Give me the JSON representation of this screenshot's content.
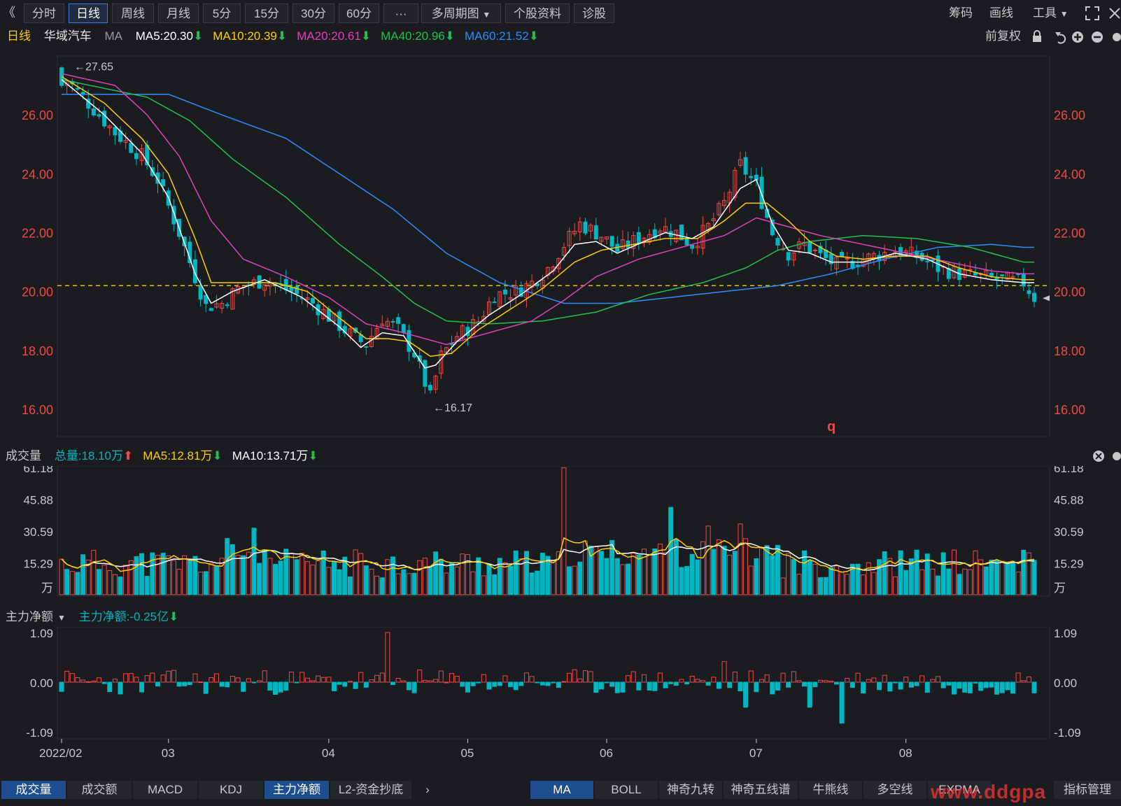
{
  "toolbar": {
    "back_glyph": "《",
    "periods": [
      "分时",
      "日线",
      "周线",
      "月线",
      "5分",
      "15分",
      "30分",
      "60分"
    ],
    "active_period": "日线",
    "more": "···",
    "multi_period": "多周期图",
    "stock_info": "个股资料",
    "diagnose": "诊股",
    "right": [
      "筹码",
      "画线",
      "工具"
    ],
    "tool_arrow": "▼"
  },
  "info": {
    "period": "日线",
    "stock": "华域汽车",
    "ma_label": "MA",
    "ma": [
      {
        "text": "MA5:20.30",
        "color": "#ffffff"
      },
      {
        "text": "MA10:20.39",
        "color": "#ffcc00"
      },
      {
        "text": "MA20:20.61",
        "color": "#e040c0"
      },
      {
        "text": "MA40:20.96",
        "color": "#22c050"
      },
      {
        "text": "MA60:21.52",
        "color": "#2f8cff"
      }
    ],
    "adjust": "前复权"
  },
  "colors": {
    "up": "#f04848",
    "down": "#00b7c3",
    "ma5": "#ffffff",
    "ma10": "#ffcc00",
    "ma20": "#e040c0",
    "ma40": "#22c050",
    "ma60": "#2f8cff",
    "axis_red": "#f04848",
    "grid": "#2c2d33"
  },
  "chart_data": [
    {
      "type": "candlestick",
      "title": "华域汽车",
      "y_ticks": [
        "26.00",
        "24.00",
        "22.00",
        "20.00",
        "18.00",
        "16.00"
      ],
      "ylim": [
        15.5,
        28.0
      ],
      "annotations": [
        {
          "text": "27.65",
          "value": 27.65
        },
        {
          "text": "16.17",
          "value": 16.17
        },
        {
          "text": "q"
        }
      ],
      "reference_line": 20.2,
      "x_ticks": [
        "2022/02",
        "03",
        "04",
        "05",
        "06",
        "07",
        "08"
      ],
      "close_path": [
        [
          0,
          27.4
        ],
        [
          5,
          26.4
        ],
        [
          10,
          25.4
        ],
        [
          15,
          24.6
        ],
        [
          18,
          23.8
        ],
        [
          22,
          22.0
        ],
        [
          25,
          20.5
        ],
        [
          27,
          19.5
        ],
        [
          30,
          19.6
        ],
        [
          33,
          20.1
        ],
        [
          38,
          20.4
        ],
        [
          43,
          20.0
        ],
        [
          47,
          19.6
        ],
        [
          51,
          19.0
        ],
        [
          55,
          18.4
        ],
        [
          57,
          18.2
        ],
        [
          60,
          19.1
        ],
        [
          63,
          18.7
        ],
        [
          66,
          17.9
        ],
        [
          69,
          16.4
        ],
        [
          71,
          17.8
        ],
        [
          74,
          18.5
        ],
        [
          78,
          19.0
        ],
        [
          81,
          19.9
        ],
        [
          85,
          20.0
        ],
        [
          88,
          20.3
        ],
        [
          91,
          20.8
        ],
        [
          94,
          21.6
        ],
        [
          97,
          22.3
        ],
        [
          101,
          21.9
        ],
        [
          104,
          21.4
        ],
        [
          108,
          21.8
        ],
        [
          112,
          22.2
        ],
        [
          115,
          22.0
        ],
        [
          118,
          21.6
        ],
        [
          121,
          22.2
        ],
        [
          124,
          23.0
        ],
        [
          127,
          24.3
        ],
        [
          130,
          23.6
        ],
        [
          133,
          22.0
        ],
        [
          136,
          21.3
        ],
        [
          139,
          21.6
        ],
        [
          142,
          21.2
        ],
        [
          145,
          20.9
        ],
        [
          148,
          21.0
        ],
        [
          152,
          21.2
        ],
        [
          156,
          21.4
        ],
        [
          160,
          21.2
        ],
        [
          164,
          20.8
        ],
        [
          168,
          20.6
        ],
        [
          172,
          20.5
        ],
        [
          176,
          20.4
        ],
        [
          180,
          20.3
        ],
        [
          182,
          19.8
        ]
      ],
      "ma_paths": {
        "ma5": [
          [
            0,
            27.2
          ],
          [
            8,
            26.0
          ],
          [
            15,
            24.7
          ],
          [
            20,
            23.2
          ],
          [
            25,
            20.6
          ],
          [
            28,
            19.6
          ],
          [
            32,
            20.0
          ],
          [
            38,
            20.4
          ],
          [
            45,
            19.8
          ],
          [
            52,
            18.8
          ],
          [
            56,
            18.1
          ],
          [
            60,
            18.6
          ],
          [
            64,
            18.5
          ],
          [
            68,
            17.4
          ],
          [
            70,
            17.5
          ],
          [
            74,
            18.3
          ],
          [
            80,
            19.2
          ],
          [
            86,
            19.9
          ],
          [
            92,
            20.7
          ],
          [
            96,
            21.6
          ],
          [
            100,
            21.7
          ],
          [
            104,
            21.3
          ],
          [
            109,
            21.7
          ],
          [
            113,
            22.0
          ],
          [
            118,
            21.8
          ],
          [
            122,
            22.2
          ],
          [
            127,
            23.5
          ],
          [
            130,
            23.8
          ],
          [
            133,
            22.3
          ],
          [
            136,
            21.4
          ],
          [
            140,
            21.3
          ],
          [
            144,
            21.0
          ],
          [
            150,
            21.0
          ],
          [
            156,
            21.3
          ],
          [
            162,
            21.1
          ],
          [
            168,
            20.6
          ],
          [
            174,
            20.4
          ],
          [
            180,
            20.3
          ]
        ],
        "ma10": [
          [
            0,
            27.3
          ],
          [
            8,
            26.4
          ],
          [
            15,
            25.2
          ],
          [
            20,
            24.0
          ],
          [
            25,
            21.8
          ],
          [
            28,
            20.3
          ],
          [
            33,
            20.3
          ],
          [
            40,
            20.3
          ],
          [
            46,
            20.0
          ],
          [
            52,
            19.1
          ],
          [
            57,
            18.4
          ],
          [
            61,
            18.4
          ],
          [
            65,
            18.3
          ],
          [
            69,
            17.8
          ],
          [
            73,
            17.9
          ],
          [
            78,
            18.7
          ],
          [
            84,
            19.4
          ],
          [
            90,
            20.1
          ],
          [
            96,
            21.0
          ],
          [
            101,
            21.4
          ],
          [
            107,
            21.6
          ],
          [
            113,
            21.8
          ],
          [
            119,
            21.8
          ],
          [
            124,
            22.4
          ],
          [
            128,
            23.0
          ],
          [
            132,
            23.0
          ],
          [
            136,
            22.4
          ],
          [
            140,
            21.7
          ],
          [
            145,
            21.2
          ],
          [
            150,
            21.1
          ],
          [
            156,
            21.2
          ],
          [
            162,
            21.2
          ],
          [
            168,
            20.8
          ],
          [
            174,
            20.5
          ],
          [
            180,
            20.4
          ]
        ],
        "ma20": [
          [
            0,
            27.4
          ],
          [
            10,
            27.0
          ],
          [
            16,
            26.0
          ],
          [
            22,
            24.6
          ],
          [
            28,
            22.4
          ],
          [
            34,
            21.1
          ],
          [
            42,
            20.5
          ],
          [
            50,
            19.8
          ],
          [
            57,
            18.9
          ],
          [
            64,
            18.6
          ],
          [
            72,
            18.2
          ],
          [
            80,
            18.6
          ],
          [
            88,
            19.0
          ],
          [
            94,
            19.7
          ],
          [
            100,
            20.5
          ],
          [
            108,
            21.1
          ],
          [
            116,
            21.5
          ],
          [
            124,
            21.9
          ],
          [
            130,
            22.5
          ],
          [
            136,
            22.2
          ],
          [
            142,
            21.9
          ],
          [
            150,
            21.6
          ],
          [
            158,
            21.3
          ],
          [
            166,
            21.0
          ],
          [
            174,
            20.7
          ],
          [
            180,
            20.6
          ]
        ],
        "ma40": [
          [
            0,
            27.2
          ],
          [
            16,
            26.6
          ],
          [
            24,
            25.8
          ],
          [
            32,
            24.5
          ],
          [
            42,
            23.2
          ],
          [
            52,
            21.6
          ],
          [
            60,
            20.5
          ],
          [
            66,
            19.6
          ],
          [
            72,
            19.0
          ],
          [
            80,
            18.9
          ],
          [
            90,
            19.0
          ],
          [
            100,
            19.3
          ],
          [
            110,
            19.9
          ],
          [
            120,
            20.3
          ],
          [
            128,
            20.8
          ],
          [
            134,
            21.4
          ],
          [
            140,
            21.7
          ],
          [
            150,
            21.9
          ],
          [
            160,
            21.8
          ],
          [
            170,
            21.5
          ],
          [
            180,
            21.0
          ]
        ],
        "ma60": [
          [
            0,
            26.7
          ],
          [
            20,
            26.7
          ],
          [
            30,
            26.0
          ],
          [
            42,
            25.2
          ],
          [
            52,
            24.0
          ],
          [
            62,
            22.8
          ],
          [
            72,
            21.3
          ],
          [
            82,
            20.3
          ],
          [
            94,
            19.6
          ],
          [
            104,
            19.6
          ],
          [
            114,
            19.8
          ],
          [
            124,
            20.0
          ],
          [
            134,
            20.2
          ],
          [
            144,
            20.6
          ],
          [
            154,
            21.1
          ],
          [
            164,
            21.5
          ],
          [
            174,
            21.6
          ],
          [
            180,
            21.5
          ]
        ]
      }
    },
    {
      "type": "bar",
      "title": "成交量",
      "series": [
        {
          "name": "总量",
          "text": "总量:18.10万",
          "color": "#00b7c3"
        },
        {
          "name": "MA5",
          "text": "MA5:12.81万",
          "color": "#ffcc00"
        },
        {
          "name": "MA10",
          "text": "MA10:13.71万",
          "color": "#ffffff"
        }
      ],
      "y_ticks": [
        "61.18",
        "45.88",
        "30.59",
        "15.29"
      ],
      "unit": "万",
      "ylim": [
        0,
        61.18
      ]
    },
    {
      "type": "bar",
      "title": "主力净额",
      "series": [
        {
          "name": "主力净额",
          "text": "主力净额:-0.25亿",
          "color": "#00b7c3"
        }
      ],
      "y_ticks": [
        "1.09",
        "0.00",
        "-1.09"
      ],
      "ylim": [
        -1.09,
        1.09
      ]
    }
  ],
  "bottom_left_tabs": [
    "成交量",
    "成交额",
    "MACD",
    "KDJ",
    "主力净额",
    "L2-资金抄底"
  ],
  "bottom_left_active": [
    "成交量",
    "主力净额"
  ],
  "bottom_right_tabs": [
    "MA",
    "BOLL",
    "神奇九转",
    "神奇五线谱",
    "牛熊线",
    "多空线",
    "EXPMA"
  ],
  "bottom_right_active": "MA",
  "index_manage": "指标管理",
  "watermark": "www.ddgpa"
}
